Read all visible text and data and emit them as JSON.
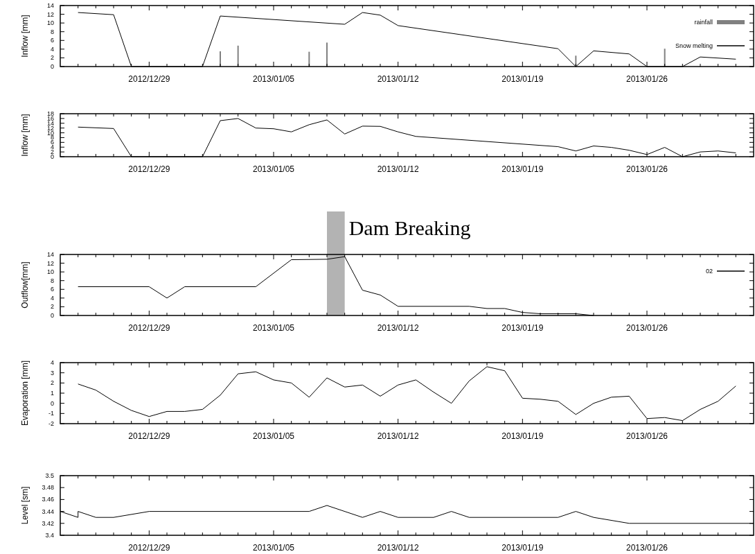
{
  "chart_data": [
    {
      "type": "line",
      "ylabel": "Inflow [mm]",
      "xlim": [
        "2012-12-24",
        "2013-02-01"
      ],
      "ylim": [
        0,
        14
      ],
      "yticks": [
        0,
        2,
        4,
        6,
        8,
        10,
        12,
        14
      ],
      "xticks": [
        {
          "value": "2012-12-25",
          "label": null
        },
        {
          "value": "2012-12-26",
          "label": null
        },
        {
          "value": "2012-12-27",
          "label": null
        },
        {
          "value": "2012-12-28",
          "label": null
        },
        {
          "value": "2012-12-29",
          "label": "2012/12/29"
        },
        {
          "value": "2012-12-30",
          "label": null
        },
        {
          "value": "2012-12-31",
          "label": null
        },
        {
          "value": "2013-01-01",
          "label": null
        },
        {
          "value": "2013-01-02",
          "label": null
        },
        {
          "value": "2013-01-03",
          "label": null
        },
        {
          "value": "2013-01-04",
          "label": null
        },
        {
          "value": "2013-01-05",
          "label": "2013/01/05"
        },
        {
          "value": "2013-01-06",
          "label": null
        },
        {
          "value": "2013-01-07",
          "label": null
        },
        {
          "value": "2013-01-08",
          "label": null
        },
        {
          "value": "2013-01-09",
          "label": null
        },
        {
          "value": "2013-01-10",
          "label": null
        },
        {
          "value": "2013-01-11",
          "label": null
        },
        {
          "value": "2013-01-12",
          "label": "2013/01/12"
        },
        {
          "value": "2013-01-13",
          "label": null
        },
        {
          "value": "2013-01-14",
          "label": null
        },
        {
          "value": "2013-01-15",
          "label": null
        },
        {
          "value": "2013-01-16",
          "label": null
        },
        {
          "value": "2013-01-17",
          "label": null
        },
        {
          "value": "2013-01-18",
          "label": null
        },
        {
          "value": "2013-01-19",
          "label": "2013/01/19"
        },
        {
          "value": "2013-01-20",
          "label": null
        },
        {
          "value": "2013-01-21",
          "label": null
        },
        {
          "value": "2013-01-22",
          "label": null
        },
        {
          "value": "2013-01-23",
          "label": null
        },
        {
          "value": "2013-01-24",
          "label": null
        },
        {
          "value": "2013-01-25",
          "label": null
        },
        {
          "value": "2013-01-26",
          "label": "2013/01/26"
        },
        {
          "value": "2013-01-27",
          "label": null
        },
        {
          "value": "2013-01-28",
          "label": null
        },
        {
          "value": "2013-01-29",
          "label": null
        },
        {
          "value": "2013-01-30",
          "label": null
        },
        {
          "value": "2013-01-31",
          "label": null
        }
      ],
      "legend": "top right",
      "grid": false,
      "series": [
        {
          "name": "rainfall",
          "type": "bar",
          "color": "#808080",
          "x": [
            "2013-01-02",
            "2013-01-03",
            "2013-01-07",
            "2013-01-08",
            "2013-01-22",
            "2013-01-27"
          ],
          "values": [
            3.5,
            4.8,
            3.4,
            5.5,
            2.5,
            4.1
          ]
        },
        {
          "name": "Snow melting",
          "type": "line",
          "color": "#000000",
          "x": [
            "2012-12-25",
            "2012-12-27",
            "2012-12-28",
            "2013-01-01",
            "2013-01-02",
            "2013-01-09",
            "2013-01-10",
            "2013-01-11",
            "2013-01-12",
            "2013-01-21",
            "2013-01-22",
            "2013-01-23",
            "2013-01-25",
            "2013-01-26",
            "2013-01-28",
            "2013-01-29",
            "2013-01-31"
          ],
          "values": [
            12.4,
            11.9,
            0,
            0,
            11.6,
            9.7,
            12.4,
            11.8,
            9.4,
            4.1,
            0,
            3.6,
            2.9,
            0,
            0,
            2.2,
            1.7
          ]
        }
      ]
    },
    {
      "type": "line",
      "ylabel": "Inflow [mm]",
      "xlim": [
        "2012-12-24",
        "2013-02-01"
      ],
      "ylim": [
        0,
        18
      ],
      "yticks": [
        0,
        2,
        4,
        6,
        8,
        10,
        12,
        14,
        16,
        18
      ],
      "xticks": [
        {
          "value": "2012-12-25",
          "label": null
        },
        {
          "value": "2012-12-26",
          "label": null
        },
        {
          "value": "2012-12-27",
          "label": null
        },
        {
          "value": "2012-12-28",
          "label": null
        },
        {
          "value": "2012-12-29",
          "label": "2012/12/29"
        },
        {
          "value": "2012-12-30",
          "label": null
        },
        {
          "value": "2012-12-31",
          "label": null
        },
        {
          "value": "2013-01-01",
          "label": null
        },
        {
          "value": "2013-01-02",
          "label": null
        },
        {
          "value": "2013-01-03",
          "label": null
        },
        {
          "value": "2013-01-04",
          "label": null
        },
        {
          "value": "2013-01-05",
          "label": "2013/01/05"
        },
        {
          "value": "2013-01-06",
          "label": null
        },
        {
          "value": "2013-01-07",
          "label": null
        },
        {
          "value": "2013-01-08",
          "label": null
        },
        {
          "value": "2013-01-09",
          "label": null
        },
        {
          "value": "2013-01-10",
          "label": null
        },
        {
          "value": "2013-01-11",
          "label": null
        },
        {
          "value": "2013-01-12",
          "label": "2013/01/12"
        },
        {
          "value": "2013-01-13",
          "label": null
        },
        {
          "value": "2013-01-14",
          "label": null
        },
        {
          "value": "2013-01-15",
          "label": null
        },
        {
          "value": "2013-01-16",
          "label": null
        },
        {
          "value": "2013-01-17",
          "label": null
        },
        {
          "value": "2013-01-18",
          "label": null
        },
        {
          "value": "2013-01-19",
          "label": "2013/01/19"
        },
        {
          "value": "2013-01-20",
          "label": null
        },
        {
          "value": "2013-01-21",
          "label": null
        },
        {
          "value": "2013-01-22",
          "label": null
        },
        {
          "value": "2013-01-23",
          "label": null
        },
        {
          "value": "2013-01-24",
          "label": null
        },
        {
          "value": "2013-01-25",
          "label": null
        },
        {
          "value": "2013-01-26",
          "label": "2013/01/26"
        },
        {
          "value": "2013-01-27",
          "label": null
        },
        {
          "value": "2013-01-28",
          "label": null
        },
        {
          "value": "2013-01-29",
          "label": null
        },
        {
          "value": "2013-01-30",
          "label": null
        },
        {
          "value": "2013-01-31",
          "label": null
        }
      ],
      "grid": false,
      "series": [
        {
          "color": "#000000",
          "x": [
            "2012-12-25",
            "2012-12-27",
            "2012-12-28",
            "2013-01-01",
            "2013-01-02",
            "2013-01-03",
            "2013-01-04",
            "2013-01-05",
            "2013-01-06",
            "2013-01-07",
            "2013-01-08",
            "2013-01-09",
            "2013-01-10",
            "2013-01-11",
            "2013-01-12",
            "2013-01-13",
            "2013-01-21",
            "2013-01-22",
            "2013-01-23",
            "2013-01-24",
            "2013-01-25",
            "2013-01-26",
            "2013-01-27",
            "2013-01-28",
            "2013-01-29",
            "2013-01-30",
            "2013-01-31"
          ],
          "values": [
            12.4,
            11.8,
            0,
            0,
            15.1,
            16.0,
            12.0,
            11.7,
            10.4,
            13.4,
            15.4,
            9.5,
            12.8,
            12.7,
            10.4,
            8.5,
            4.2,
            2.4,
            4.5,
            3.9,
            2.7,
            0.9,
            3.9,
            0,
            2.0,
            2.4,
            1.6
          ]
        }
      ]
    },
    {
      "type": "line",
      "ylabel": "Outflow[mm]",
      "xlim": [
        "2012-12-24",
        "2013-02-01"
      ],
      "ylim": [
        0,
        14
      ],
      "yticks": [
        0,
        2,
        4,
        6,
        8,
        10,
        12,
        14
      ],
      "xticks": [
        {
          "value": "2012-12-25",
          "label": null
        },
        {
          "value": "2012-12-26",
          "label": null
        },
        {
          "value": "2012-12-27",
          "label": null
        },
        {
          "value": "2012-12-28",
          "label": null
        },
        {
          "value": "2012-12-29",
          "label": "2012/12/29"
        },
        {
          "value": "2012-12-30",
          "label": null
        },
        {
          "value": "2012-12-31",
          "label": null
        },
        {
          "value": "2013-01-01",
          "label": null
        },
        {
          "value": "2013-01-02",
          "label": null
        },
        {
          "value": "2013-01-03",
          "label": null
        },
        {
          "value": "2013-01-04",
          "label": null
        },
        {
          "value": "2013-01-05",
          "label": "2013/01/05"
        },
        {
          "value": "2013-01-06",
          "label": null
        },
        {
          "value": "2013-01-07",
          "label": null
        },
        {
          "value": "2013-01-08",
          "label": null
        },
        {
          "value": "2013-01-09",
          "label": null
        },
        {
          "value": "2013-01-10",
          "label": null
        },
        {
          "value": "2013-01-11",
          "label": null
        },
        {
          "value": "2013-01-12",
          "label": "2013/01/12"
        },
        {
          "value": "2013-01-13",
          "label": null
        },
        {
          "value": "2013-01-14",
          "label": null
        },
        {
          "value": "2013-01-15",
          "label": null
        },
        {
          "value": "2013-01-16",
          "label": null
        },
        {
          "value": "2013-01-17",
          "label": null
        },
        {
          "value": "2013-01-18",
          "label": null
        },
        {
          "value": "2013-01-19",
          "label": "2013/01/19"
        },
        {
          "value": "2013-01-20",
          "label": null
        },
        {
          "value": "2013-01-21",
          "label": null
        },
        {
          "value": "2013-01-22",
          "label": null
        },
        {
          "value": "2013-01-23",
          "label": null
        },
        {
          "value": "2013-01-24",
          "label": null
        },
        {
          "value": "2013-01-25",
          "label": null
        },
        {
          "value": "2013-01-26",
          "label": "2013/01/26"
        },
        {
          "value": "2013-01-27",
          "label": null
        },
        {
          "value": "2013-01-28",
          "label": null
        },
        {
          "value": "2013-01-29",
          "label": null
        },
        {
          "value": "2013-01-30",
          "label": null
        },
        {
          "value": "2013-01-31",
          "label": null
        }
      ],
      "legend": "top right",
      "grid": false,
      "bands": [
        {
          "axis": "x",
          "from": "2013-01-08",
          "to": "2013-01-09",
          "label": "Dam Breaking",
          "color": "#b3b3b3"
        }
      ],
      "series": [
        {
          "name": "02",
          "color": "#000000",
          "x": [
            "2012-12-25",
            "2012-12-29",
            "2012-12-30",
            "2012-12-31",
            "2013-01-04",
            "2013-01-06",
            "2013-01-08",
            "2013-01-09",
            "2013-01-10",
            "2013-01-11",
            "2013-01-12",
            "2013-01-16",
            "2013-01-17",
            "2013-01-18",
            "2013-01-19",
            "2013-01-20",
            "2013-01-22",
            "2013-01-23"
          ],
          "values": [
            6.6,
            6.6,
            4.0,
            6.6,
            6.6,
            12.8,
            12.9,
            13.5,
            5.8,
            4.7,
            2.1,
            2.1,
            1.6,
            1.6,
            0.7,
            0.4,
            0.4,
            0
          ]
        }
      ]
    },
    {
      "type": "line",
      "ylabel": "Evaporation [mm]",
      "xlim": [
        "2012-12-24",
        "2013-02-01"
      ],
      "ylim": [
        -2,
        4
      ],
      "yticks": [
        -2,
        -1,
        0,
        1,
        2,
        3,
        4
      ],
      "xticks": [
        {
          "value": "2012-12-25",
          "label": null
        },
        {
          "value": "2012-12-26",
          "label": null
        },
        {
          "value": "2012-12-27",
          "label": null
        },
        {
          "value": "2012-12-28",
          "label": null
        },
        {
          "value": "2012-12-29",
          "label": "2012/12/29"
        },
        {
          "value": "2012-12-30",
          "label": null
        },
        {
          "value": "2012-12-31",
          "label": null
        },
        {
          "value": "2013-01-01",
          "label": null
        },
        {
          "value": "2013-01-02",
          "label": null
        },
        {
          "value": "2013-01-03",
          "label": null
        },
        {
          "value": "2013-01-04",
          "label": null
        },
        {
          "value": "2013-01-05",
          "label": "2013/01/05"
        },
        {
          "value": "2013-01-06",
          "label": null
        },
        {
          "value": "2013-01-07",
          "label": null
        },
        {
          "value": "2013-01-08",
          "label": null
        },
        {
          "value": "2013-01-09",
          "label": null
        },
        {
          "value": "2013-01-10",
          "label": null
        },
        {
          "value": "2013-01-11",
          "label": null
        },
        {
          "value": "2013-01-12",
          "label": "2013/01/12"
        },
        {
          "value": "2013-01-13",
          "label": null
        },
        {
          "value": "2013-01-14",
          "label": null
        },
        {
          "value": "2013-01-15",
          "label": null
        },
        {
          "value": "2013-01-16",
          "label": null
        },
        {
          "value": "2013-01-17",
          "label": null
        },
        {
          "value": "2013-01-18",
          "label": null
        },
        {
          "value": "2013-01-19",
          "label": "2013/01/19"
        },
        {
          "value": "2013-01-20",
          "label": null
        },
        {
          "value": "2013-01-21",
          "label": null
        },
        {
          "value": "2013-01-22",
          "label": null
        },
        {
          "value": "2013-01-23",
          "label": null
        },
        {
          "value": "2013-01-24",
          "label": null
        },
        {
          "value": "2013-01-25",
          "label": null
        },
        {
          "value": "2013-01-26",
          "label": "2013/01/26"
        },
        {
          "value": "2013-01-27",
          "label": null
        },
        {
          "value": "2013-01-28",
          "label": null
        },
        {
          "value": "2013-01-29",
          "label": null
        },
        {
          "value": "2013-01-30",
          "label": null
        },
        {
          "value": "2013-01-31",
          "label": null
        }
      ],
      "grid": false,
      "series": [
        {
          "color": "#000000",
          "x": [
            "2012-12-25",
            "2012-12-26",
            "2012-12-27",
            "2012-12-28",
            "2012-12-29",
            "2012-12-30",
            "2012-12-31",
            "2013-01-01",
            "2013-01-02",
            "2013-01-03",
            "2013-01-04",
            "2013-01-05",
            "2013-01-06",
            "2013-01-07",
            "2013-01-08",
            "2013-01-09",
            "2013-01-10",
            "2013-01-11",
            "2013-01-12",
            "2013-01-13",
            "2013-01-14",
            "2013-01-15",
            "2013-01-16",
            "2013-01-17",
            "2013-01-18",
            "2013-01-19",
            "2013-01-20",
            "2013-01-21",
            "2013-01-22",
            "2013-01-23",
            "2013-01-24",
            "2013-01-25",
            "2013-01-26",
            "2013-01-27",
            "2013-01-28",
            "2013-01-29",
            "2013-01-30",
            "2013-01-31"
          ],
          "values": [
            1.9,
            1.3,
            0.2,
            -0.7,
            -1.3,
            -0.8,
            -0.8,
            -0.6,
            0.8,
            2.9,
            3.1,
            2.3,
            2.0,
            0.6,
            2.5,
            1.6,
            1.8,
            0.7,
            1.8,
            2.3,
            1.1,
            0.0,
            2.2,
            3.6,
            3.2,
            0.5,
            0.4,
            0.2,
            -1.1,
            0.0,
            0.6,
            0.7,
            -1.5,
            -1.4,
            -1.7,
            -0.6,
            0.2,
            1.7
          ]
        }
      ]
    },
    {
      "type": "line",
      "ylabel": "Level [sm]",
      "xlim": [
        "2012-12-24",
        "2013-02-01"
      ],
      "ylim": [
        3.4,
        3.5
      ],
      "yticks": [
        3.4,
        3.42,
        3.44,
        3.46,
        3.48,
        3.5
      ],
      "xticks": [
        {
          "value": "2012-12-25",
          "label": null
        },
        {
          "value": "2012-12-26",
          "label": null
        },
        {
          "value": "2012-12-27",
          "label": null
        },
        {
          "value": "2012-12-28",
          "label": null
        },
        {
          "value": "2012-12-29",
          "label": "2012/12/29"
        },
        {
          "value": "2012-12-30",
          "label": null
        },
        {
          "value": "2012-12-31",
          "label": null
        },
        {
          "value": "2013-01-01",
          "label": null
        },
        {
          "value": "2013-01-02",
          "label": null
        },
        {
          "value": "2013-01-03",
          "label": null
        },
        {
          "value": "2013-01-04",
          "label": null
        },
        {
          "value": "2013-01-05",
          "label": "2013/01/05"
        },
        {
          "value": "2013-01-06",
          "label": null
        },
        {
          "value": "2013-01-07",
          "label": null
        },
        {
          "value": "2013-01-08",
          "label": null
        },
        {
          "value": "2013-01-09",
          "label": null
        },
        {
          "value": "2013-01-10",
          "label": null
        },
        {
          "value": "2013-01-11",
          "label": null
        },
        {
          "value": "2013-01-12",
          "label": "2013/01/12"
        },
        {
          "value": "2013-01-13",
          "label": null
        },
        {
          "value": "2013-01-14",
          "label": null
        },
        {
          "value": "2013-01-15",
          "label": null
        },
        {
          "value": "2013-01-16",
          "label": null
        },
        {
          "value": "2013-01-17",
          "label": null
        },
        {
          "value": "2013-01-18",
          "label": null
        },
        {
          "value": "2013-01-19",
          "label": "2013/01/19"
        },
        {
          "value": "2013-01-20",
          "label": null
        },
        {
          "value": "2013-01-21",
          "label": null
        },
        {
          "value": "2013-01-22",
          "label": null
        },
        {
          "value": "2013-01-23",
          "label": null
        },
        {
          "value": "2013-01-24",
          "label": null
        },
        {
          "value": "2013-01-25",
          "label": null
        },
        {
          "value": "2013-01-26",
          "label": "2013/01/26"
        },
        {
          "value": "2013-01-27",
          "label": null
        },
        {
          "value": "2013-01-28",
          "label": null
        },
        {
          "value": "2013-01-29",
          "label": null
        },
        {
          "value": "2013-01-30",
          "label": null
        },
        {
          "value": "2013-01-31",
          "label": null
        }
      ],
      "grid": false,
      "series": [
        {
          "color": "#000000",
          "x": [
            "2012-12-24",
            "2012-12-25",
            "2012-12-25",
            "2012-12-26",
            "2012-12-27",
            "2012-12-29",
            "2013-01-07",
            "2013-01-08",
            "2013-01-10",
            "2013-01-11",
            "2013-01-12",
            "2013-01-14",
            "2013-01-15",
            "2013-01-16",
            "2013-01-21",
            "2013-01-22",
            "2013-01-23",
            "2013-01-25",
            "2013-02-01"
          ],
          "values": [
            3.44,
            3.43,
            3.44,
            3.43,
            3.43,
            3.44,
            3.44,
            3.45,
            3.43,
            3.44,
            3.43,
            3.43,
            3.44,
            3.43,
            3.43,
            3.44,
            3.43,
            3.42,
            3.42
          ]
        }
      ]
    }
  ]
}
